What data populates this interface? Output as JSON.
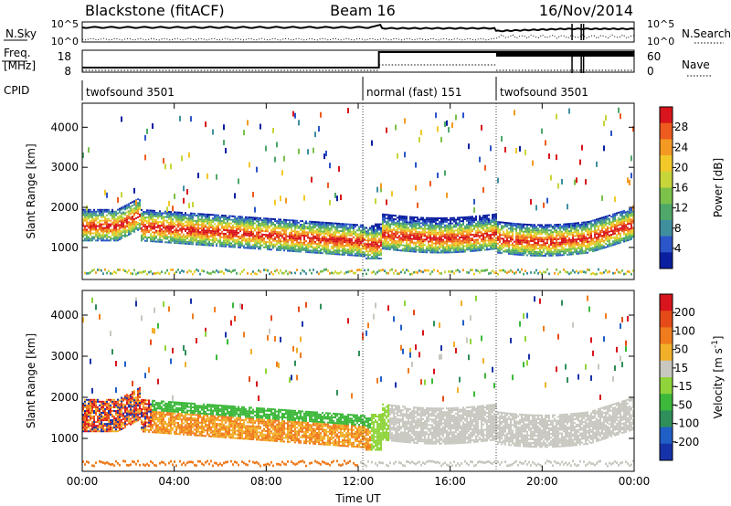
{
  "header": {
    "title": "Blackstone (fitACF)",
    "beam": "Beam 16",
    "date": "16/Nov/2014"
  },
  "panel_labels": {
    "nsky": "N.Sky",
    "nsky_top": "10^5",
    "nsky_bot": "10^0",
    "nsearch": "N.Search",
    "nsearch_top": "10^5",
    "nsearch_bot": "10^0",
    "freq_l1": "Freq.",
    "freq_l2": "[MHz]",
    "freq_top": "18",
    "freq_bot": "8",
    "nave": "Nave",
    "nave_top": "60",
    "nave_bot": "0",
    "cpid": "CPID"
  },
  "cpid_segments": [
    {
      "label": "twofsound 3501",
      "start_hour": 0
    },
    {
      "label": "normal (fast) 151",
      "start_hour": 12.2
    },
    {
      "label": "twofsound 3501",
      "start_hour": 18.0
    }
  ],
  "chart_data": [
    {
      "type": "heatmap",
      "ylabel": "Slant Range [km]",
      "x_ticks": [
        "00:00",
        "04:00",
        "08:00",
        "12:00",
        "16:00",
        "20:00",
        "00:00"
      ],
      "y_ticks": [
        "1000",
        "2000",
        "3000",
        "4000"
      ],
      "ylim": [
        200,
        4600
      ],
      "colorbar": {
        "label": "Power [dB]",
        "ticks": [
          "28",
          "24",
          "20",
          "16",
          "12",
          "8",
          "4"
        ],
        "colors": [
          "#0a1ea0",
          "#2b55c8",
          "#3f8f9f",
          "#4fa86a",
          "#7cc24a",
          "#c8d53a",
          "#f3c92a",
          "#f49a22",
          "#ee5b1e",
          "#d8141c"
        ]
      }
    },
    {
      "type": "heatmap",
      "ylabel": "Slant Range [km]",
      "xlabel": "Time UT",
      "x_ticks": [
        "00:00",
        "04:00",
        "08:00",
        "12:00",
        "16:00",
        "20:00",
        "00:00"
      ],
      "y_ticks": [
        "1000",
        "2000",
        "3000",
        "4000"
      ],
      "ylim": [
        200,
        4600
      ],
      "colorbar": {
        "label": "Velocity [m s-1]",
        "label_text": "Velocity [m s",
        "label_exp": "-1",
        "label_end": "]",
        "ticks": [
          "200",
          "100",
          "50",
          "15",
          "-15",
          "-50",
          "-100",
          "-200"
        ],
        "colors": [
          "#1632a8",
          "#1f5fc6",
          "#2f8f5a",
          "#3cb83a",
          "#8ed43a",
          "#c8c8c0",
          "#f2b02a",
          "#f07c1e",
          "#e54a18",
          "#d8141c"
        ]
      }
    }
  ]
}
